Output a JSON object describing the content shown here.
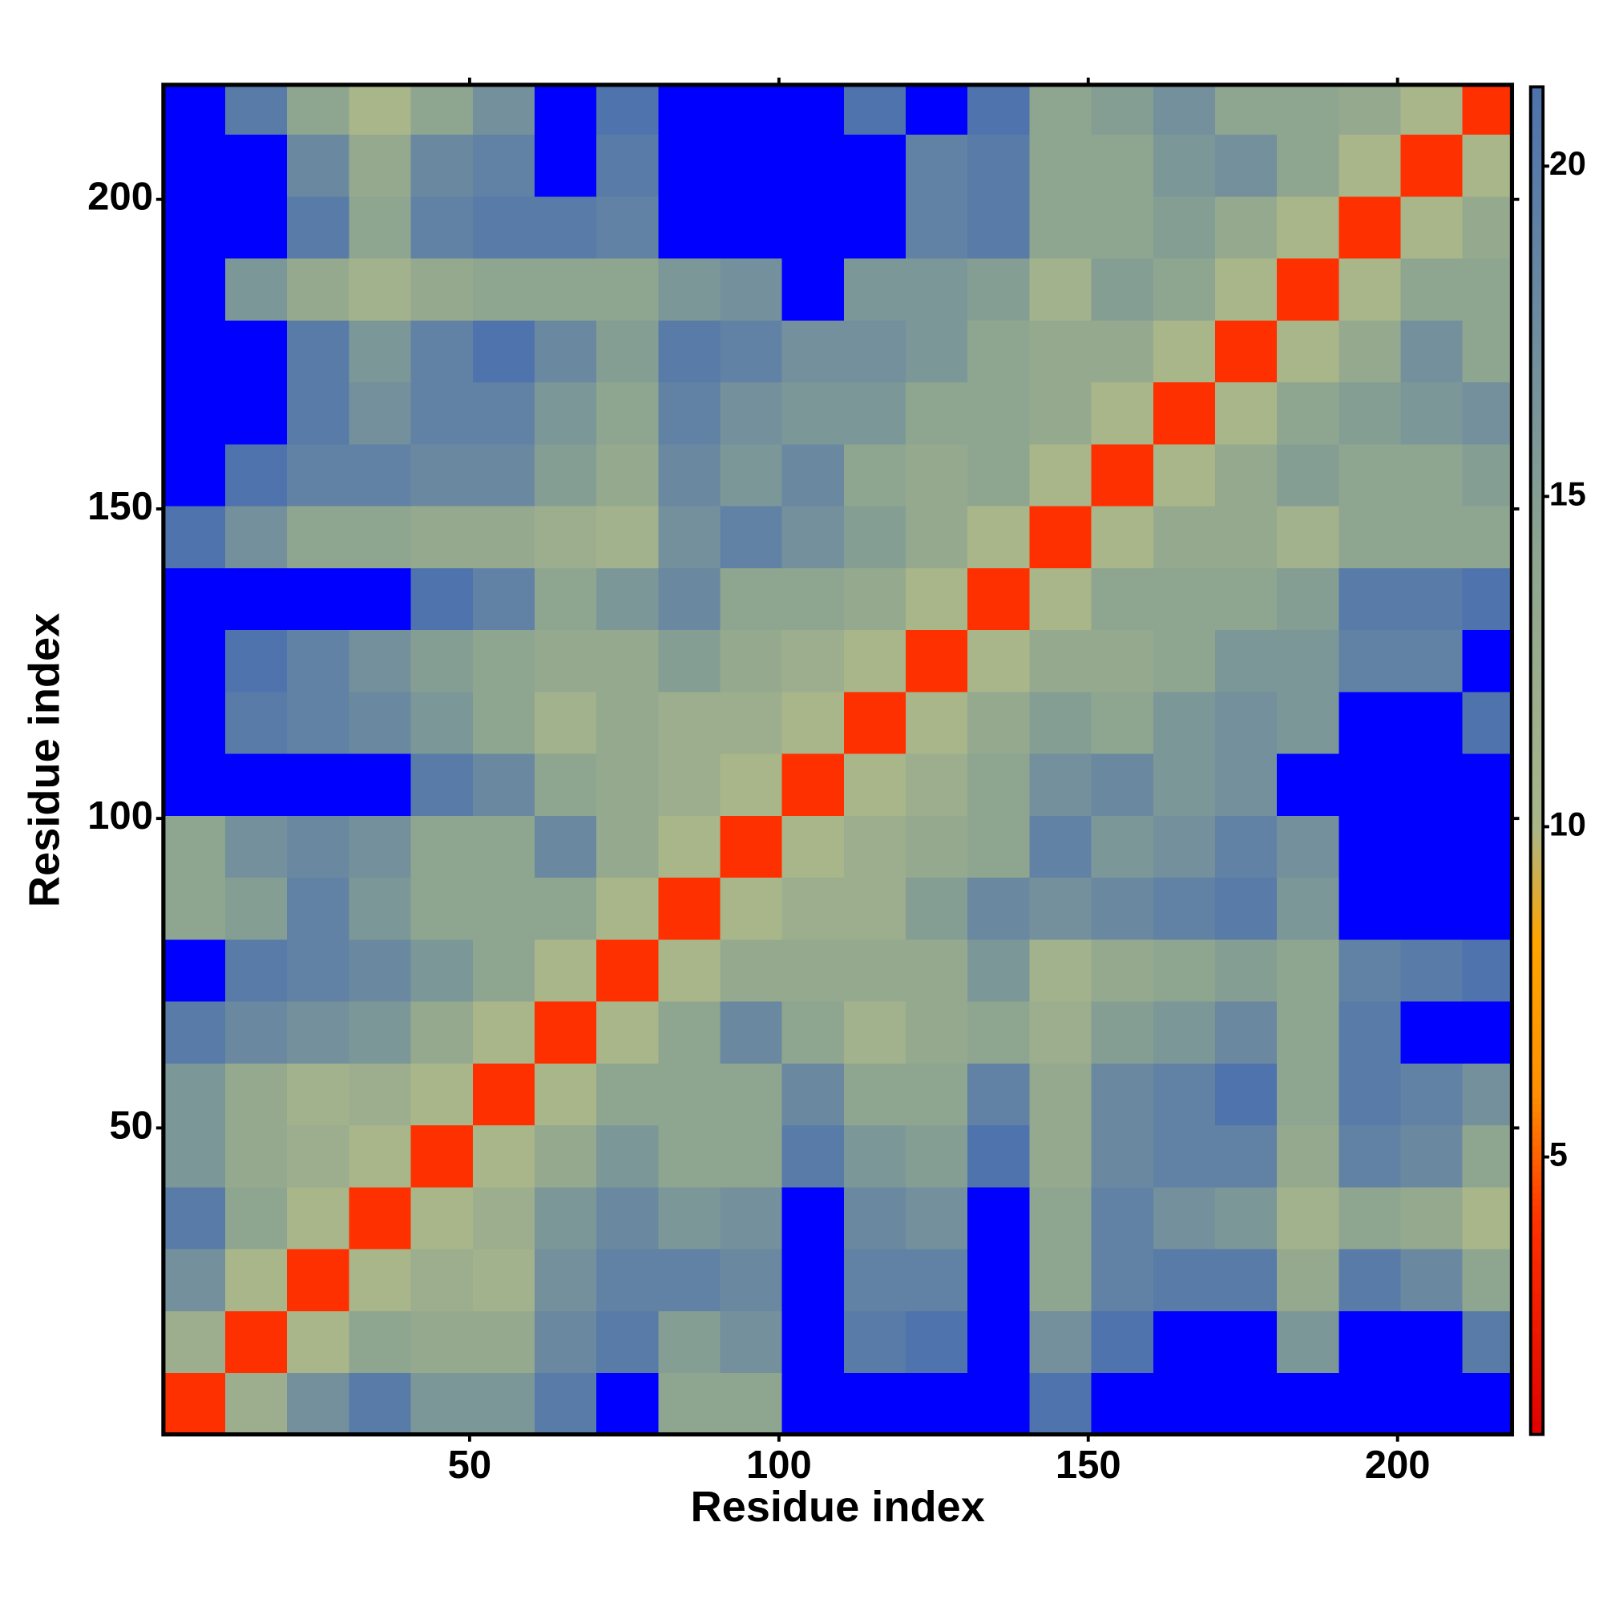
{
  "chart_data": {
    "type": "heatmap",
    "xlabel": "Residue index",
    "ylabel": "Residue index",
    "xbins": [
      0.5,
      10.5,
      20.5,
      30.5,
      40.5,
      50.5,
      60.5,
      70.5,
      80.5,
      90.5,
      100.5,
      110.5,
      120.5,
      130.5,
      140.5,
      150.5,
      160.5,
      170.5,
      180.5,
      190.5,
      200.5,
      210.5,
      218.5
    ],
    "ybins": [
      0.5,
      10.5,
      20.5,
      30.5,
      40.5,
      50.5,
      60.5,
      70.5,
      80.5,
      90.5,
      100.5,
      110.5,
      120.5,
      130.5,
      140.5,
      150.5,
      160.5,
      170.5,
      180.5,
      190.5,
      200.5,
      210.5,
      218.5
    ],
    "z": [
      [
        4,
        12,
        17,
        20,
        16,
        16,
        20,
        22,
        14,
        14,
        22,
        22,
        22,
        22,
        21,
        22,
        22,
        22,
        22,
        22,
        22,
        22
      ],
      [
        12,
        4,
        10,
        14,
        13,
        13,
        18,
        20,
        15,
        17,
        22,
        20,
        21,
        22,
        17,
        21,
        22,
        22,
        16,
        22,
        22,
        20
      ],
      [
        17,
        10,
        4,
        10,
        12,
        11,
        17,
        19,
        19,
        18,
        22,
        19,
        19,
        22,
        14,
        19,
        20,
        20,
        13,
        20,
        18,
        14
      ],
      [
        20,
        14,
        10,
        4,
        10,
        12,
        16,
        18,
        16,
        17,
        22,
        18,
        17,
        22,
        14,
        19,
        17,
        16,
        11,
        14,
        13,
        10
      ],
      [
        16,
        13,
        12,
        10,
        4,
        10,
        13,
        16,
        14,
        14,
        20,
        16,
        15,
        21,
        13,
        18,
        19,
        19,
        13,
        19,
        18,
        14
      ],
      [
        16,
        13,
        11,
        12,
        10,
        4,
        10,
        14,
        14,
        14,
        18,
        14,
        14,
        19,
        13,
        18,
        19,
        21,
        14,
        20,
        19,
        17
      ],
      [
        20,
        18,
        17,
        16,
        13,
        10,
        4,
        10,
        14,
        18,
        14,
        11,
        13,
        14,
        12,
        15,
        16,
        18,
        14,
        20,
        22,
        22
      ],
      [
        22,
        20,
        19,
        18,
        16,
        14,
        10,
        4,
        10,
        13,
        13,
        13,
        13,
        16,
        11,
        13,
        14,
        15,
        14,
        19,
        20,
        21
      ],
      [
        14,
        15,
        19,
        16,
        14,
        14,
        14,
        10,
        4,
        10,
        12,
        12,
        15,
        18,
        17,
        18,
        19,
        20,
        16,
        22,
        22,
        22
      ],
      [
        14,
        17,
        18,
        17,
        14,
        14,
        18,
        13,
        10,
        4,
        10,
        12,
        13,
        14,
        19,
        16,
        17,
        19,
        17,
        22,
        22,
        22
      ],
      [
        22,
        22,
        22,
        22,
        20,
        18,
        14,
        13,
        12,
        10,
        4,
        10,
        12,
        14,
        17,
        18,
        16,
        17,
        22,
        22,
        22,
        22
      ],
      [
        22,
        20,
        19,
        18,
        16,
        14,
        11,
        13,
        12,
        12,
        10,
        4,
        10,
        13,
        15,
        14,
        16,
        17,
        16,
        22,
        22,
        21
      ],
      [
        22,
        21,
        19,
        17,
        15,
        14,
        13,
        13,
        15,
        13,
        12,
        10,
        4,
        10,
        13,
        13,
        14,
        16,
        16,
        19,
        19,
        22
      ],
      [
        22,
        22,
        22,
        22,
        21,
        19,
        14,
        16,
        18,
        14,
        14,
        13,
        10,
        4,
        10,
        14,
        14,
        14,
        15,
        20,
        20,
        21
      ],
      [
        21,
        17,
        14,
        14,
        13,
        13,
        12,
        11,
        17,
        19,
        17,
        15,
        13,
        10,
        4,
        10,
        13,
        13,
        11,
        14,
        14,
        14
      ],
      [
        22,
        21,
        19,
        19,
        18,
        18,
        15,
        13,
        18,
        16,
        18,
        14,
        13,
        14,
        10,
        4,
        10,
        13,
        15,
        14,
        14,
        15
      ],
      [
        22,
        22,
        20,
        17,
        19,
        19,
        16,
        14,
        19,
        17,
        16,
        16,
        14,
        14,
        13,
        10,
        4,
        10,
        14,
        15,
        16,
        17
      ],
      [
        22,
        22,
        20,
        16,
        19,
        21,
        18,
        15,
        20,
        19,
        17,
        17,
        16,
        14,
        13,
        13,
        10,
        4,
        10,
        13,
        17,
        14
      ],
      [
        22,
        16,
        13,
        11,
        13,
        14,
        14,
        14,
        16,
        17,
        22,
        16,
        16,
        15,
        11,
        15,
        14,
        10,
        4,
        10,
        14,
        14
      ],
      [
        22,
        22,
        20,
        14,
        19,
        20,
        20,
        19,
        22,
        22,
        22,
        22,
        19,
        20,
        14,
        14,
        15,
        13,
        10,
        4,
        10,
        13
      ],
      [
        22,
        22,
        18,
        13,
        18,
        19,
        22,
        20,
        22,
        22,
        22,
        22,
        19,
        20,
        14,
        14,
        16,
        17,
        14,
        10,
        4,
        10
      ],
      [
        22,
        20,
        14,
        10,
        14,
        17,
        22,
        21,
        22,
        22,
        22,
        21,
        22,
        21,
        14,
        15,
        17,
        14,
        14,
        13,
        10,
        4
      ]
    ],
    "xlim": [
      0.5,
      218.5
    ],
    "ylim": [
      0.5,
      218.5
    ],
    "xticks": [
      50,
      100,
      150,
      200
    ],
    "yticks": [
      50,
      100,
      150,
      200
    ],
    "zlim": [
      0.8,
      21.2
    ],
    "zticks": [
      5,
      10,
      15,
      20
    ],
    "colorscale": [
      [
        0.8,
        "#e00000"
      ],
      [
        4,
        "#ff3000"
      ],
      [
        6,
        "#ff9000"
      ],
      [
        8.3,
        "#ffa500"
      ],
      [
        10,
        "#a9b68a"
      ],
      [
        14,
        "#8ea590"
      ],
      [
        21.2,
        "#4d72ad"
      ]
    ],
    "over_color": "#0000ff"
  }
}
